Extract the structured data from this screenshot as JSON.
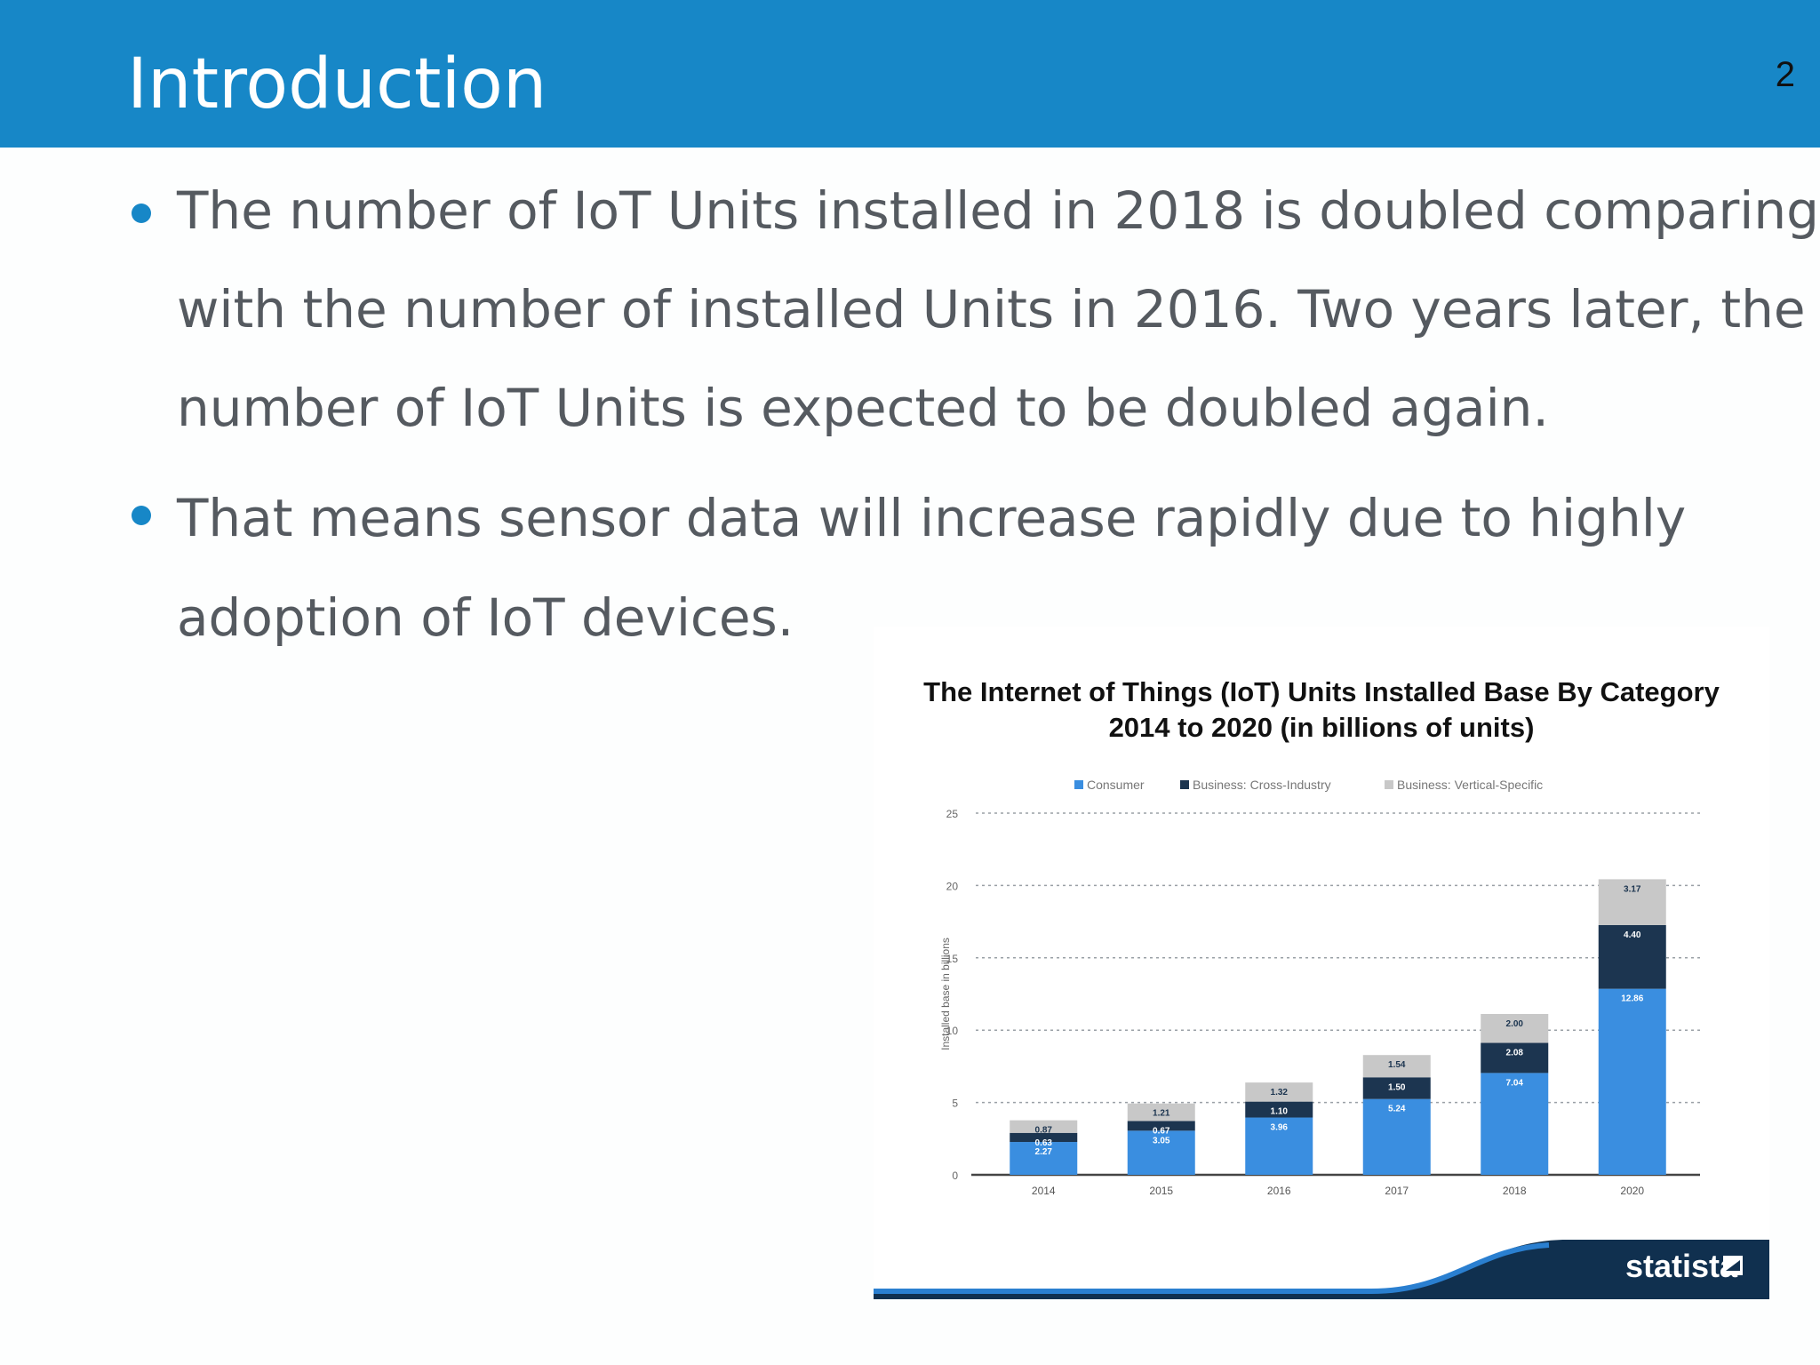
{
  "slide": {
    "title": "Introduction",
    "page_number": "2",
    "accent_color": "#1787c7",
    "text_color": "#555a60"
  },
  "bullets": [
    {
      "lines": [
        "The number of IoT Units installed in 2018 is doubled comparing",
        "with the number of installed Units in 2016. Two years later, the",
        "number of IoT Units is expected to be doubled again."
      ]
    },
    {
      "lines": [
        "That means sensor data will increase rapidly due to highly",
        "adoption of IoT devices."
      ]
    }
  ],
  "chart_data": {
    "type": "bar",
    "stacked": true,
    "title": "The Internet of Things (IoT) Units Installed Base By Category",
    "subtitle": "2014 to 2020 (in billions of units)",
    "xlabel": "",
    "ylabel": "Installed base in billions",
    "ylim": [
      0,
      25
    ],
    "yticks": [
      0,
      5,
      10,
      15,
      20,
      25
    ],
    "grid": true,
    "legend_position": "top",
    "categories": [
      "2014",
      "2015",
      "2016",
      "2017",
      "2018",
      "2020"
    ],
    "series": [
      {
        "name": "Consumer",
        "color": "#3a8ee0",
        "values": [
          2.27,
          3.05,
          3.96,
          5.24,
          7.04,
          12.86
        ]
      },
      {
        "name": "Business: Cross-Industry",
        "color": "#1c3550",
        "values": [
          0.63,
          0.67,
          1.1,
          1.5,
          2.08,
          4.4
        ]
      },
      {
        "name": "Business: Vertical-Specific",
        "color": "#c8c8c8",
        "values": [
          0.87,
          1.21,
          1.32,
          1.54,
          2.0,
          3.17
        ]
      }
    ],
    "source": "statista"
  }
}
